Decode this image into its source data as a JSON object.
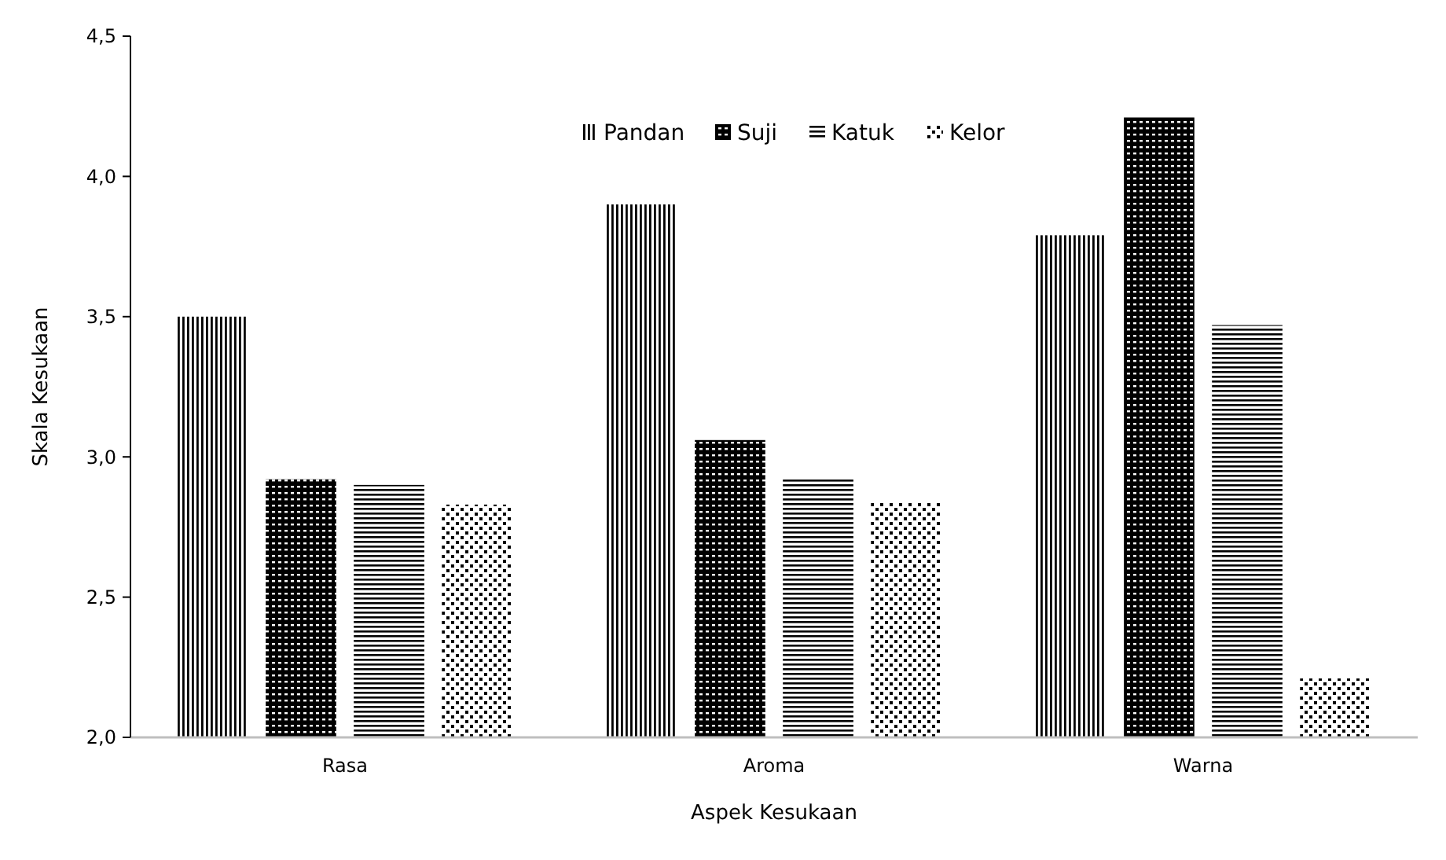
{
  "chart_data": {
    "type": "bar",
    "xlabel": "Aspek Kesukaan",
    "ylabel": "Skala Kesukaan",
    "categories": [
      "Rasa",
      "Aroma",
      "Warna"
    ],
    "series": [
      {
        "name": "Pandan",
        "color": "#000000",
        "values": [
          3.5,
          3.9,
          3.79
        ]
      },
      {
        "name": "Suji",
        "color": "#000000",
        "values": [
          2.92,
          3.06,
          4.21
        ]
      },
      {
        "name": "Katuk",
        "color": "#000000",
        "values": [
          2.9,
          2.92,
          3.47
        ]
      },
      {
        "name": "Kelor",
        "color": "#000000",
        "values": [
          2.83,
          2.84,
          2.21
        ]
      }
    ],
    "ylim": [
      2,
      4.5
    ],
    "yticks": [
      {
        "value": 2,
        "label": "2,0"
      },
      {
        "value": 2.5,
        "label": "2,5"
      },
      {
        "value": 3,
        "label": "3,0"
      },
      {
        "value": 3.5,
        "label": "3,5"
      },
      {
        "value": 4,
        "label": "4,0"
      },
      {
        "value": 4.5,
        "label": "4,5"
      }
    ],
    "grid": false,
    "legend": "top"
  }
}
